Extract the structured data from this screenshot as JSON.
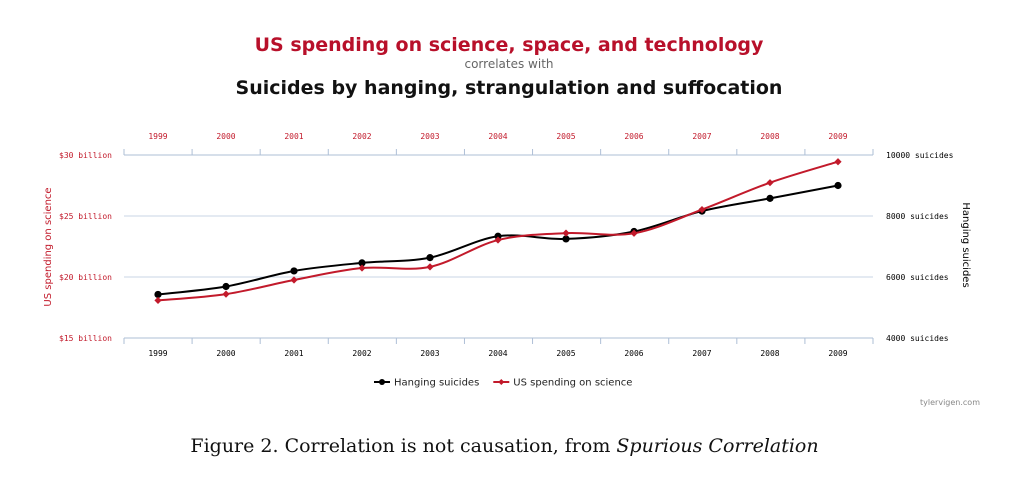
{
  "header": {
    "title": "US spending on science, space, and technology",
    "subtitle": "correlates with",
    "title2": "Suicides by hanging, strangulation and suffocation"
  },
  "chart_data": {
    "type": "line",
    "x": [
      "1999",
      "2000",
      "2001",
      "2002",
      "2003",
      "2004",
      "2005",
      "2006",
      "2007",
      "2008",
      "2009"
    ],
    "series": [
      {
        "name": "Hanging suicides",
        "axis": "right",
        "color": "#000000",
        "values": [
          5427,
          5688,
          6198,
          6462,
          6635,
          7336,
          7248,
          7491,
          8161,
          8578,
          9000
        ]
      },
      {
        "name": "US spending on science",
        "axis": "right-left",
        "color": "#c21a2b",
        "values": [
          18.079,
          18.594,
          19.753,
          20.734,
          20.831,
          23.029,
          23.597,
          23.584,
          25.525,
          27.731,
          29.449
        ]
      }
    ],
    "y_left": {
      "label": "US spending on science",
      "range": [
        15,
        30
      ],
      "ticks": [
        15,
        20,
        25,
        30
      ],
      "tick_labels": [
        "$15 billion",
        "$20 billion",
        "$25 billion",
        "$30 billion"
      ],
      "color": "#c21a2b"
    },
    "y_right": {
      "label": "Hanging suicides",
      "range": [
        4000,
        10000
      ],
      "ticks": [
        4000,
        6000,
        8000,
        10000
      ],
      "tick_labels": [
        "4000 suicides",
        "6000 suicides",
        "8000 suicides",
        "10000 suicides"
      ],
      "color": "#000000"
    },
    "top_axis_color": "#c21a2b",
    "bottom_axis_color": "#000000",
    "legend": "bottom-center",
    "grid": true
  },
  "credit": "tylervigen.com",
  "caption": {
    "prefix": "Figure 2. Correlation is not causation, from ",
    "italic": "Spurious Correlation"
  }
}
